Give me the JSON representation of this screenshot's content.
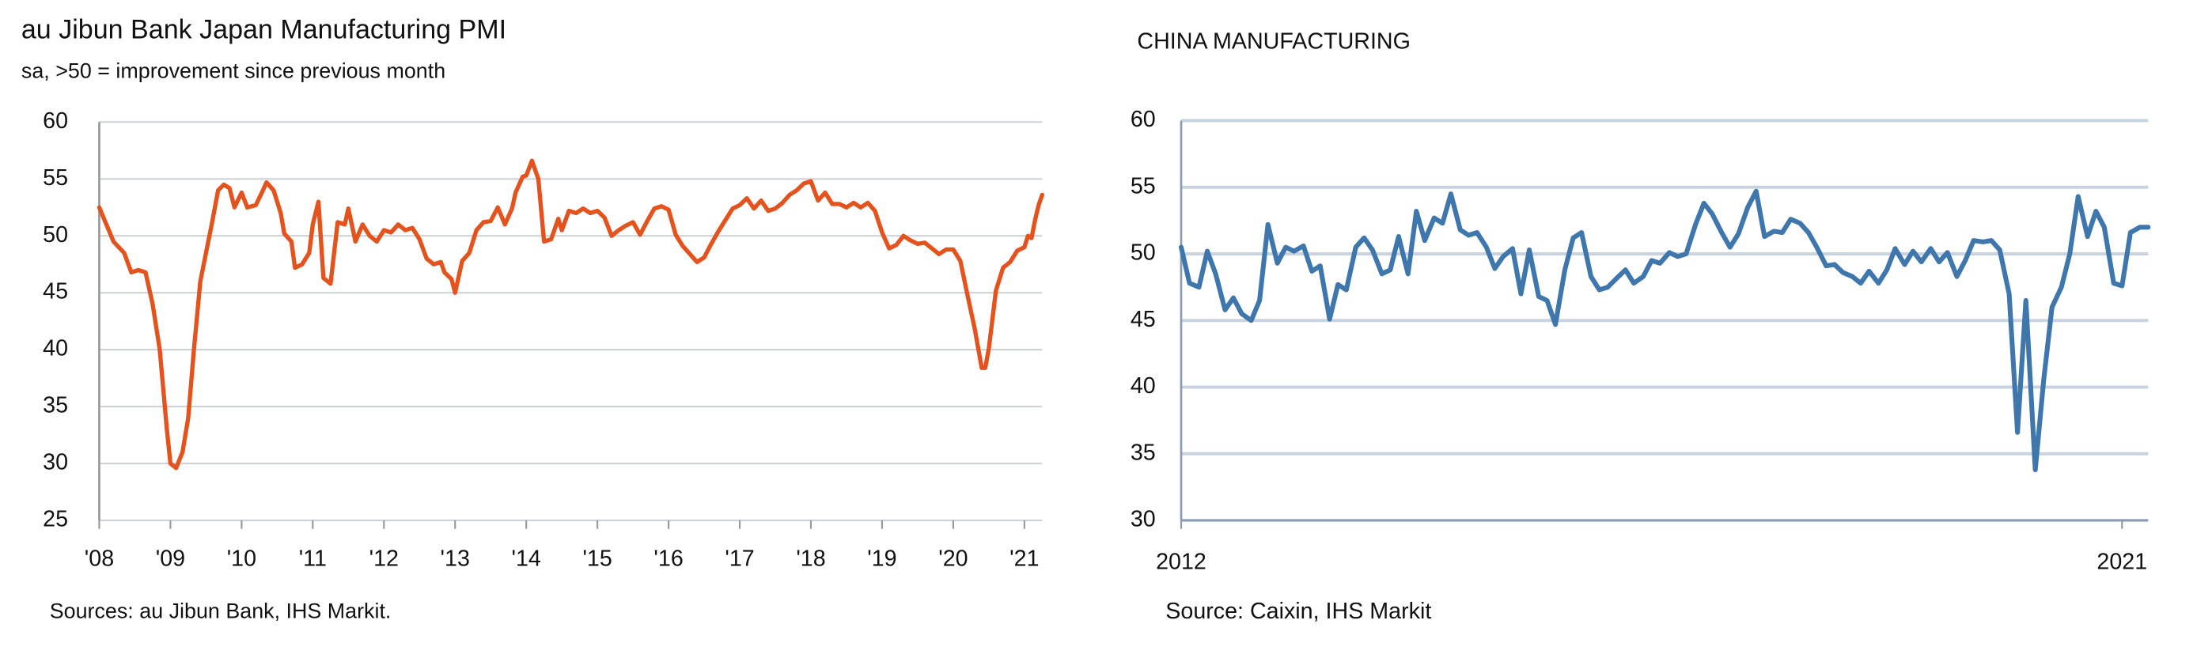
{
  "chart_data": [
    {
      "type": "line",
      "title": "au Jibun Bank Japan Manufacturing PMI",
      "subtitle": "sa, >50 = improvement since previous month",
      "source": "Sources: au Jibun Bank, IHS Markit.",
      "color": "#e4531d",
      "grid": true,
      "xlim": [
        2008,
        2021.25
      ],
      "xticks": [
        {
          "value": 2008,
          "label": "'08"
        },
        {
          "value": 2009,
          "label": "'09"
        },
        {
          "value": 2010,
          "label": "'10"
        },
        {
          "value": 2011,
          "label": "'11"
        },
        {
          "value": 2012,
          "label": "'12"
        },
        {
          "value": 2013,
          "label": "'13"
        },
        {
          "value": 2014,
          "label": "'14"
        },
        {
          "value": 2015,
          "label": "'15"
        },
        {
          "value": 2016,
          "label": "'16"
        },
        {
          "value": 2017,
          "label": "'17"
        },
        {
          "value": 2018,
          "label": "'18"
        },
        {
          "value": 2019,
          "label": "'19"
        },
        {
          "value": 2020,
          "label": "'20"
        },
        {
          "value": 2021,
          "label": "'21"
        }
      ],
      "ylim": [
        25,
        60
      ],
      "yticks": [
        25,
        30,
        35,
        40,
        45,
        50,
        55,
        60
      ],
      "x": [
        2008.0,
        2008.1,
        2008.2,
        2008.35,
        2008.45,
        2008.55,
        2008.65,
        2008.75,
        2008.85,
        2008.95,
        2009.0,
        2009.08,
        2009.17,
        2009.25,
        2009.33,
        2009.42,
        2009.5,
        2009.58,
        2009.67,
        2009.75,
        2009.83,
        2009.9,
        2010.0,
        2010.08,
        2010.2,
        2010.3,
        2010.35,
        2010.45,
        2010.55,
        2010.6,
        2010.7,
        2010.75,
        2010.85,
        2010.95,
        2011.0,
        2011.08,
        2011.15,
        2011.25,
        2011.35,
        2011.45,
        2011.5,
        2011.6,
        2011.7,
        2011.8,
        2011.9,
        2012.0,
        2012.1,
        2012.2,
        2012.3,
        2012.4,
        2012.5,
        2012.6,
        2012.7,
        2012.8,
        2012.85,
        2012.95,
        2013.0,
        2013.1,
        2013.2,
        2013.3,
        2013.4,
        2013.5,
        2013.6,
        2013.7,
        2013.8,
        2013.85,
        2013.95,
        2014.0,
        2014.08,
        2014.17,
        2014.25,
        2014.35,
        2014.45,
        2014.5,
        2014.6,
        2014.7,
        2014.8,
        2014.9,
        2015.0,
        2015.1,
        2015.2,
        2015.3,
        2015.4,
        2015.5,
        2015.6,
        2015.7,
        2015.8,
        2015.9,
        2016.0,
        2016.1,
        2016.2,
        2016.3,
        2016.4,
        2016.5,
        2016.6,
        2016.7,
        2016.8,
        2016.9,
        2017.0,
        2017.1,
        2017.2,
        2017.3,
        2017.4,
        2017.5,
        2017.6,
        2017.7,
        2017.8,
        2017.9,
        2018.0,
        2018.1,
        2018.2,
        2018.3,
        2018.4,
        2018.5,
        2018.6,
        2018.7,
        2018.8,
        2018.9,
        2019.0,
        2019.1,
        2019.2,
        2019.3,
        2019.4,
        2019.5,
        2019.6,
        2019.7,
        2019.8,
        2019.9,
        2020.0,
        2020.1,
        2020.2,
        2020.3,
        2020.4,
        2020.45,
        2020.5,
        2020.6,
        2020.7,
        2020.8,
        2020.9,
        2021.0,
        2021.05,
        2021.1,
        2021.15,
        2021.2,
        2021.25
      ],
      "values": [
        52.5,
        51,
        49.5,
        48.5,
        46.8,
        47,
        46.8,
        44,
        40,
        33,
        30,
        29.6,
        31,
        34,
        40,
        46,
        48.5,
        51,
        54,
        54.5,
        54.2,
        52.5,
        53.8,
        52.5,
        52.7,
        54,
        54.7,
        54,
        52,
        50.2,
        49.5,
        47.2,
        47.5,
        48.5,
        51,
        53,
        46.3,
        45.8,
        51.2,
        51,
        52.4,
        49.5,
        51,
        50,
        49.5,
        50.5,
        50.3,
        51,
        50.5,
        50.7,
        49.7,
        48,
        47.5,
        47.7,
        46.8,
        46.2,
        45,
        47.8,
        48.5,
        50.5,
        51.2,
        51.3,
        52.5,
        51,
        52.4,
        53.8,
        55.2,
        55.3,
        56.6,
        55,
        49.5,
        49.7,
        51.5,
        50.5,
        52.2,
        52,
        52.4,
        52,
        52.2,
        51.6,
        50,
        50.5,
        50.9,
        51.2,
        50.1,
        51.3,
        52.4,
        52.6,
        52.3,
        50.1,
        49.1,
        48.4,
        47.7,
        48.1,
        49.3,
        50.4,
        51.4,
        52.4,
        52.7,
        53.3,
        52.4,
        53.1,
        52.2,
        52.4,
        52.9,
        53.6,
        54,
        54.6,
        54.8,
        53.1,
        53.8,
        52.8,
        52.8,
        52.5,
        52.9,
        52.5,
        52.9,
        52.2,
        50.3,
        48.9,
        49.2,
        50,
        49.6,
        49.3,
        49.4,
        48.9,
        48.4,
        48.8,
        48.8,
        47.8,
        44.8,
        41.9,
        38.4,
        38.4,
        40.1,
        45.2,
        47.2,
        47.7,
        48.7,
        49,
        50,
        49.8,
        51.4,
        52.7,
        53.6
      ]
    },
    {
      "type": "line",
      "title": "CHINA MANUFACTURING",
      "source": "Source: Caixin, IHS Markit",
      "color": "#3f77ad",
      "grid": true,
      "xlim": [
        2012,
        2021.25
      ],
      "xticks": [
        2012,
        2021
      ],
      "ylim": [
        30,
        60
      ],
      "yticks": [
        30,
        35,
        40,
        45,
        50,
        55,
        60
      ],
      "x": [
        2012.0,
        2012.08,
        2012.17,
        2012.25,
        2012.33,
        2012.42,
        2012.5,
        2012.58,
        2012.67,
        2012.75,
        2012.83,
        2012.92,
        2013.0,
        2013.08,
        2013.17,
        2013.25,
        2013.33,
        2013.42,
        2013.5,
        2013.58,
        2013.67,
        2013.75,
        2013.83,
        2013.92,
        2014.0,
        2014.08,
        2014.17,
        2014.25,
        2014.33,
        2014.42,
        2014.5,
        2014.58,
        2014.67,
        2014.75,
        2014.83,
        2014.92,
        2015.0,
        2015.08,
        2015.17,
        2015.25,
        2015.33,
        2015.42,
        2015.5,
        2015.58,
        2015.67,
        2015.75,
        2015.83,
        2015.92,
        2016.0,
        2016.08,
        2016.17,
        2016.25,
        2016.33,
        2016.42,
        2016.5,
        2016.58,
        2016.67,
        2016.75,
        2016.83,
        2016.92,
        2017.0,
        2017.08,
        2017.17,
        2017.25,
        2017.33,
        2017.42,
        2017.5,
        2017.58,
        2017.67,
        2017.75,
        2017.83,
        2017.92,
        2018.0,
        2018.08,
        2018.17,
        2018.25,
        2018.33,
        2018.42,
        2018.5,
        2018.58,
        2018.67,
        2018.75,
        2018.83,
        2018.92,
        2019.0,
        2019.08,
        2019.17,
        2019.25,
        2019.33,
        2019.42,
        2019.5,
        2019.58,
        2019.67,
        2019.75,
        2019.83,
        2019.92,
        2020.0,
        2020.08,
        2020.17,
        2020.25,
        2020.33,
        2020.42,
        2020.5,
        2020.58,
        2020.67,
        2020.75,
        2020.83,
        2020.92,
        2021.0,
        2021.08,
        2021.17,
        2021.25
      ],
      "values": [
        50.5,
        47.8,
        47.5,
        50.2,
        48.5,
        45.8,
        46.7,
        45.5,
        45,
        46.5,
        52.2,
        49.3,
        50.5,
        50.2,
        50.6,
        48.7,
        49.1,
        45.1,
        47.7,
        47.3,
        50.5,
        51.2,
        50.3,
        48.5,
        48.8,
        51.3,
        48.5,
        53.2,
        51,
        52.7,
        52.3,
        54.5,
        51.8,
        51.4,
        51.6,
        50.5,
        48.9,
        49.8,
        50.4,
        47,
        50.3,
        46.8,
        46.5,
        44.7,
        48.8,
        51.2,
        51.6,
        48.3,
        47.3,
        47.5,
        48.2,
        48.8,
        47.8,
        48.3,
        49.5,
        49.3,
        50.1,
        49.8,
        50,
        52.2,
        53.8,
        53,
        51.6,
        50.5,
        51.5,
        53.5,
        54.7,
        51.3,
        51.7,
        51.6,
        52.6,
        52.3,
        51.6,
        50.5,
        49.1,
        49.2,
        48.6,
        48.3,
        47.8,
        48.7,
        47.8,
        48.8,
        50.4,
        49.2,
        50.2,
        49.4,
        50.4,
        49.4,
        50.1,
        48.3,
        49.5,
        51,
        50.9,
        51,
        50.3,
        47,
        36.6,
        46.5,
        33.8,
        40.5,
        46,
        47.5,
        50,
        54.3,
        51.3,
        53.2,
        52,
        47.8,
        47.6,
        51.6,
        52,
        52
      ]
    }
  ]
}
